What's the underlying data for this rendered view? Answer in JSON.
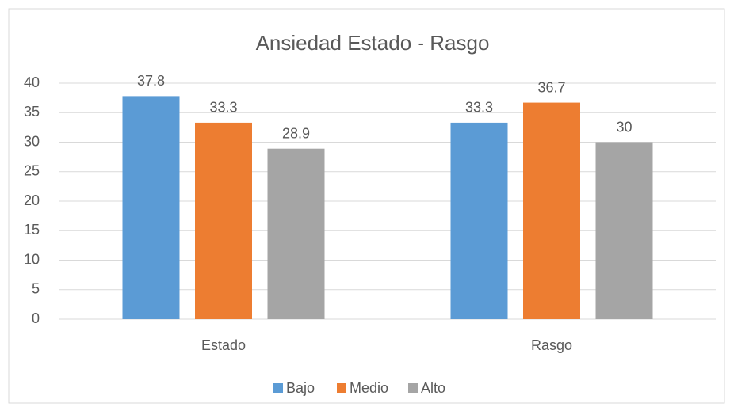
{
  "chart_data": {
    "type": "bar",
    "title": "Ansiedad Estado - Rasgo",
    "categories": [
      "Estado",
      "Rasgo"
    ],
    "series": [
      {
        "name": "Bajo",
        "color": "#5b9bd5",
        "values": [
          37.8,
          33.3
        ]
      },
      {
        "name": "Medio",
        "color": "#ed7d31",
        "values": [
          33.3,
          36.7
        ]
      },
      {
        "name": "Alto",
        "color": "#a5a5a5",
        "values": [
          28.9,
          30
        ]
      }
    ],
    "ylim": [
      0,
      40
    ],
    "yticks": [
      0,
      5,
      10,
      15,
      20,
      25,
      30,
      35,
      40
    ],
    "grid": true,
    "legend": "bottom"
  }
}
